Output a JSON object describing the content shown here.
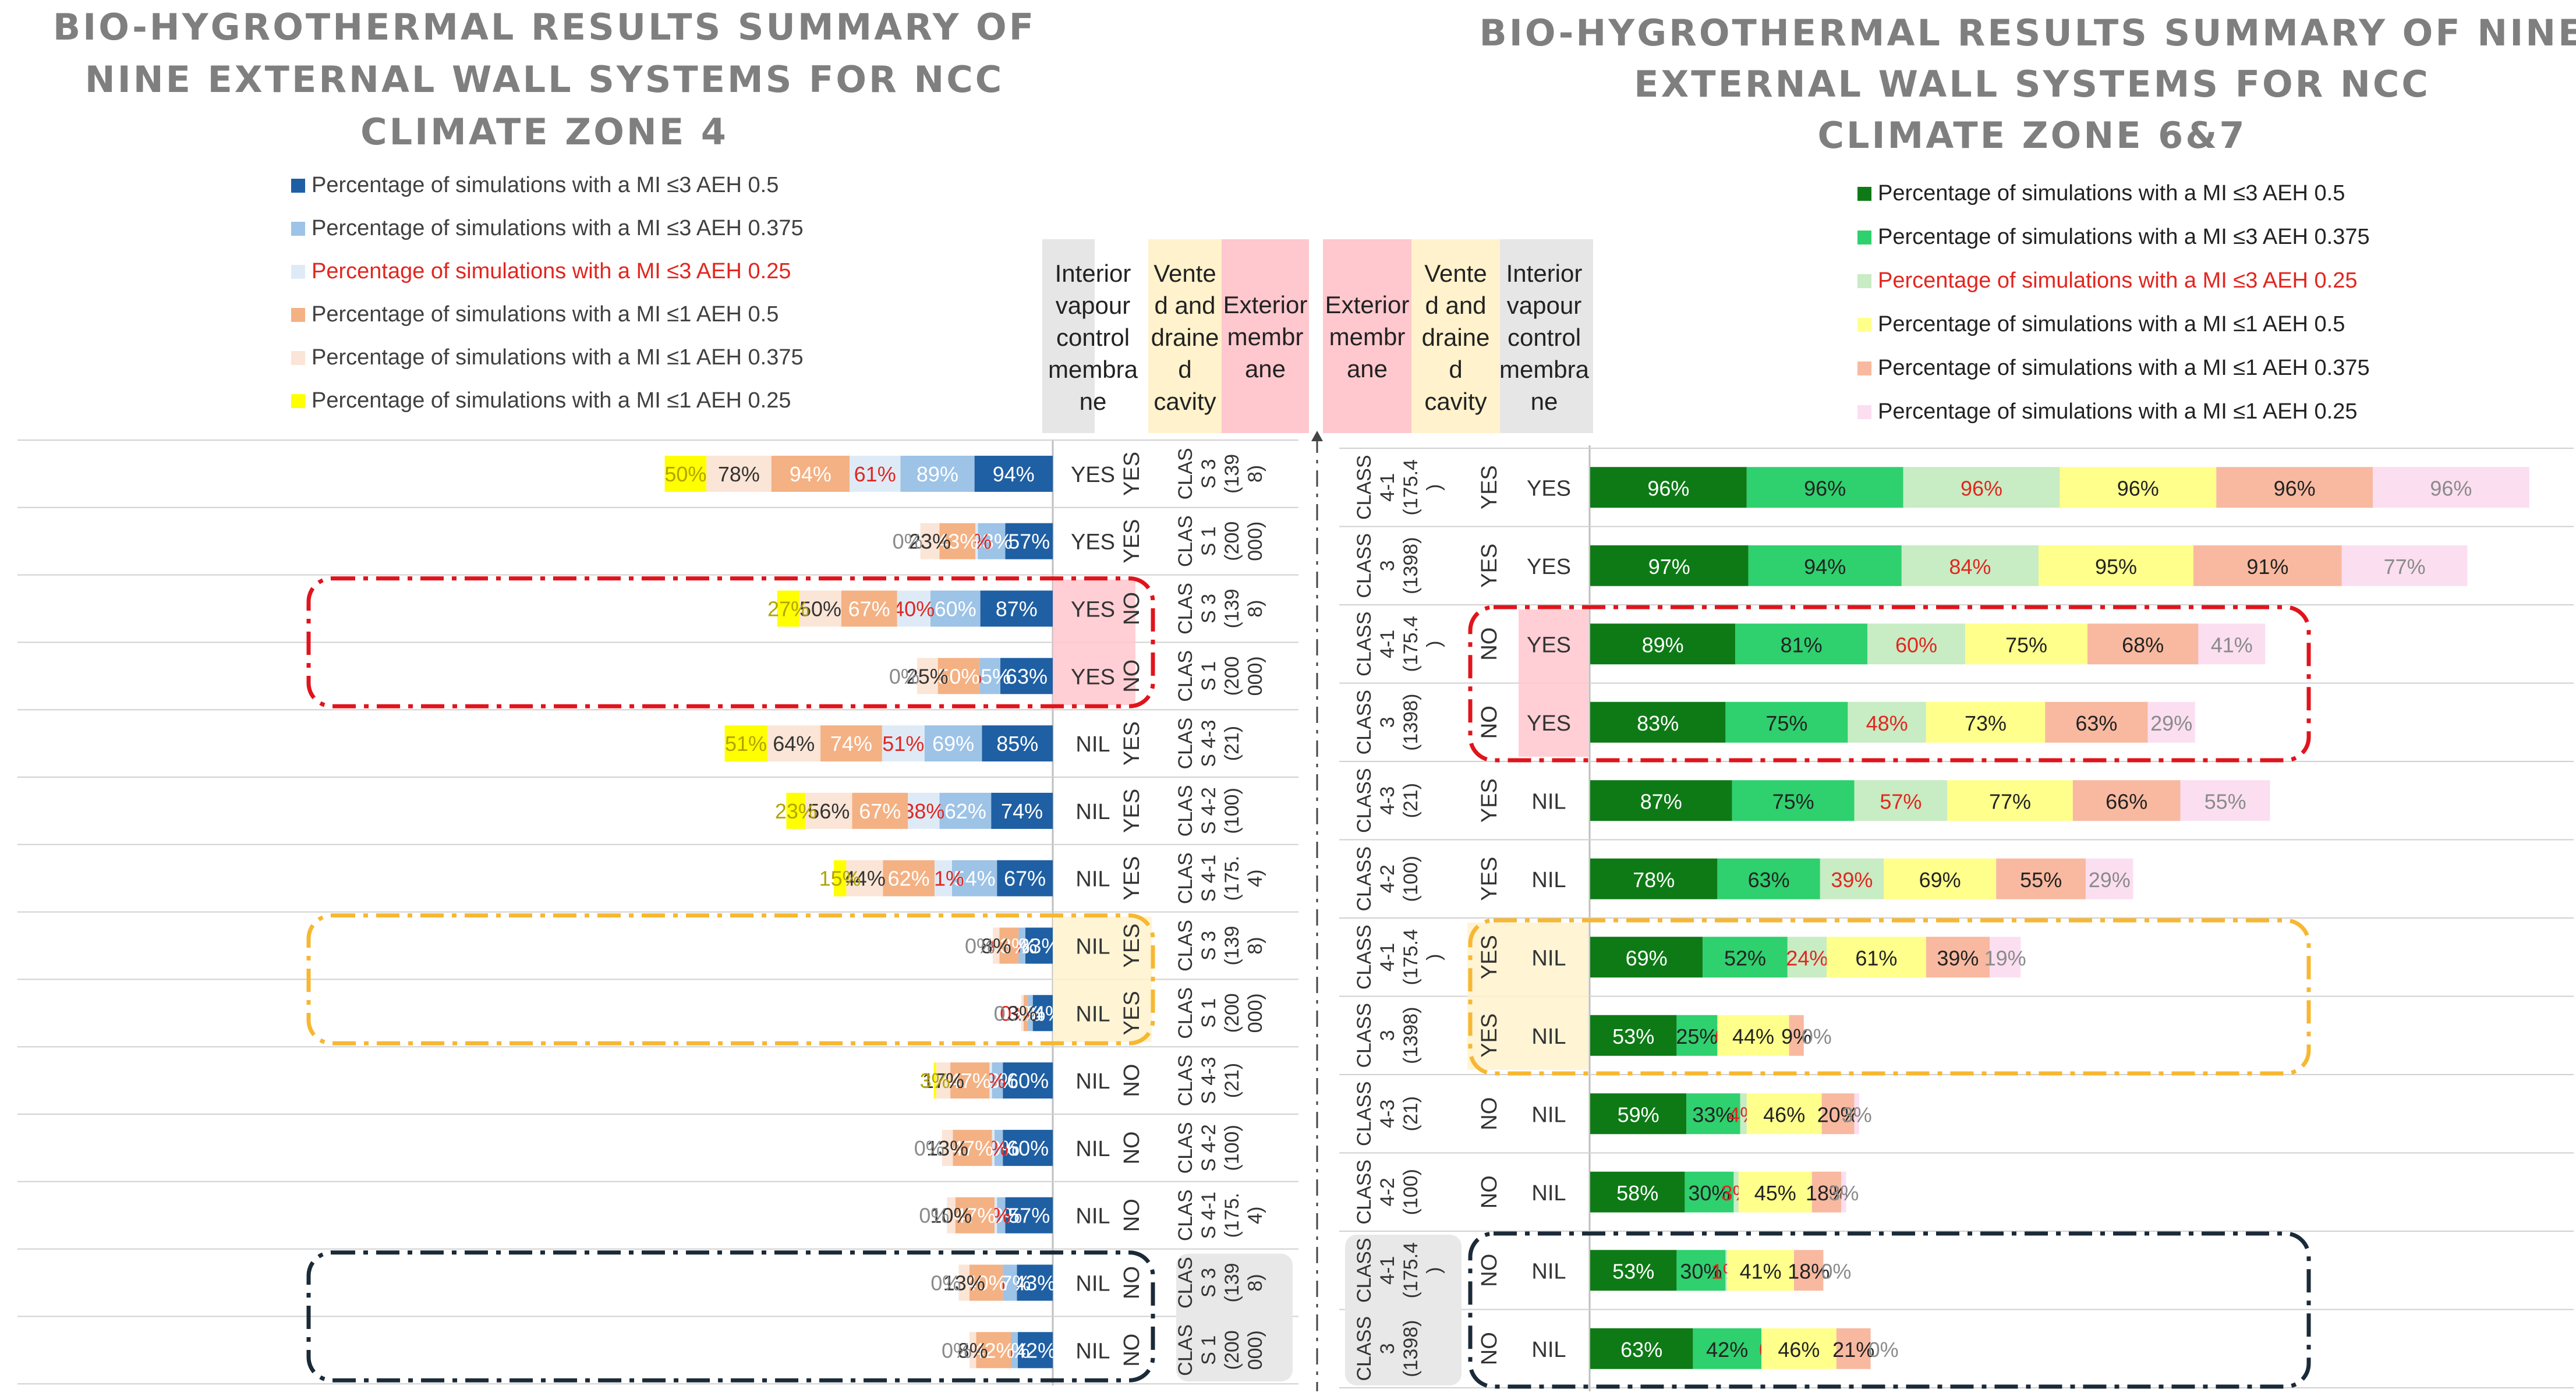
{
  "chart_data": [
    {
      "type": "bar",
      "title": "BIO-HYGROTHERMAL RESULTS SUMMARY OF NINE EXTERNAL WALL SYSTEMS FOR NCC CLIMATE ZONE 4",
      "title_lines": [
        "BIO-HYGROTHERMAL RESULTS SUMMARY OF",
        "NINE EXTERNAL WALL SYSTEMS FOR NCC",
        "CLIMATE ZONE 4"
      ],
      "series": [
        {
          "name": "Percentage of simulations with a MI ≤3 AEH 0.5",
          "color": "#1f5fa3",
          "label_color": "#ffffff"
        },
        {
          "name": "Percentage of simulations with a MI ≤3 AEH 0.375",
          "color": "#9dc3e6",
          "label_color": "#ffffff"
        },
        {
          "name": "Percentage of simulations with a MI ≤3 AEH 0.25",
          "color": "#deebf7",
          "label_color": "#e2261f"
        },
        {
          "name": "Percentage of simulations with a MI ≤1 AEH 0.5",
          "color": "#f4b183",
          "label_color": "#ffffff"
        },
        {
          "name": "Percentage of simulations with a MI ≤1 AEH 0.375",
          "color": "#fbe5d6",
          "label_color": "#333333"
        },
        {
          "name": "Percentage of simulations with a MI ≤1 AEH 0.25",
          "color": "#ffff00",
          "label_color": "#b3a400"
        }
      ],
      "highlight_legend_index": 2,
      "columns": [
        "Interior vapour control membrane",
        "Vented and drained cavity",
        "Exterior membrane"
      ],
      "column_header_lines": [
        [
          "Interior",
          "vapour",
          "control",
          "membra",
          "ne"
        ],
        [
          "Vente",
          "d and",
          "draine",
          "d",
          "cavity"
        ],
        [
          "Exterior",
          "membr",
          "ane"
        ]
      ],
      "rows": [
        {
          "values": [
            94,
            89,
            61,
            94,
            78,
            50
          ],
          "labels": [
            "94%",
            "89%",
            "61%",
            "94%",
            "78%",
            "50%"
          ],
          "interior": "YES",
          "cavity": "YES",
          "class": [
            "CLAS",
            "S 3",
            "(139",
            "8)"
          ]
        },
        {
          "values": [
            57,
            33,
            3,
            43,
            23,
            0
          ],
          "labels": [
            "57%",
            "33%",
            "3%",
            "43%",
            "23%",
            "0%"
          ],
          "interior": "YES",
          "cavity": "YES",
          "class": [
            "CLAS",
            "S 1",
            "(200",
            "000)"
          ]
        },
        {
          "values": [
            87,
            60,
            40,
            67,
            50,
            27
          ],
          "labels": [
            "87%",
            "60%",
            "40%",
            "67%",
            "50%",
            "27%"
          ],
          "interior": "YES",
          "cavity": "NO",
          "class": [
            "CLAS",
            "S 3",
            "(139",
            "8)"
          ]
        },
        {
          "values": [
            63,
            25,
            0,
            50,
            25,
            0
          ],
          "labels": [
            "63%",
            "25%",
            "0%",
            "50%",
            "25%",
            "0%"
          ],
          "interior": "YES",
          "cavity": "NO",
          "class": [
            "CLAS",
            "S 1",
            "(200",
            "000)"
          ]
        },
        {
          "values": [
            85,
            69,
            51,
            74,
            64,
            51
          ],
          "labels": [
            "85%",
            "69%",
            "51%",
            "74%",
            "64%",
            "51%"
          ],
          "interior": "NIL",
          "cavity": "YES",
          "class": [
            "CLAS",
            "S 4-3",
            "(21)"
          ]
        },
        {
          "values": [
            74,
            62,
            38,
            67,
            56,
            23
          ],
          "labels": [
            "74%",
            "62%",
            "38%",
            "67%",
            "56%",
            "23%"
          ],
          "interior": "NIL",
          "cavity": "YES",
          "class": [
            "CLAS",
            "S 4-2",
            "(100)"
          ]
        },
        {
          "values": [
            67,
            54,
            21,
            62,
            44,
            15
          ],
          "labels": [
            "67%",
            "54%",
            "21%",
            "62%",
            "44%",
            "15%"
          ],
          "interior": "NIL",
          "cavity": "YES",
          "class": [
            "CLAS",
            "S 4-1",
            "(175.",
            "4)"
          ]
        },
        {
          "values": [
            33,
            8,
            0,
            23,
            8,
            0
          ],
          "labels": [
            "33%",
            "8%",
            "0%",
            "23%",
            "8%",
            "0%"
          ],
          "interior": "NIL",
          "cavity": "YES",
          "class": [
            "CLAS",
            "S 3",
            "(139",
            "8)"
          ]
        },
        {
          "values": [
            24,
            6,
            0,
            5,
            3,
            0
          ],
          "labels": [
            "24%",
            "6%",
            "0%",
            "5%",
            "3%",
            "0..."
          ],
          "interior": "NIL",
          "cavity": "YES",
          "class": [
            "CLAS",
            "S 1",
            "(200",
            "000)"
          ]
        },
        {
          "values": [
            60,
            13,
            3,
            47,
            17,
            3
          ],
          "labels": [
            "60%",
            "13%",
            "3%",
            "47%",
            "17%",
            "3%"
          ],
          "interior": "NIL",
          "cavity": "NO",
          "class": [
            "CLAS",
            "S 4-3",
            "(21)"
          ]
        },
        {
          "values": [
            60,
            10,
            3,
            47,
            13,
            0
          ],
          "labels": [
            "60%",
            "10%",
            "3%",
            "47%",
            "13%",
            "0%"
          ],
          "interior": "NIL",
          "cavity": "NO",
          "class": [
            "CLAS",
            "S 4-2",
            "(100)"
          ]
        },
        {
          "values": [
            57,
            10,
            3,
            47,
            10,
            0
          ],
          "labels": [
            "57%",
            "10%",
            "3%",
            "47%",
            "10%",
            "0%"
          ],
          "interior": "NIL",
          "cavity": "NO",
          "class": [
            "CLAS",
            "S 4-1",
            "(175.",
            "4)"
          ]
        },
        {
          "values": [
            43,
            17,
            0,
            40,
            13,
            0
          ],
          "labels": [
            "43%",
            "17%",
            "0%",
            "40%",
            "13%",
            "0%"
          ],
          "interior": "NIL",
          "cavity": "NO",
          "class": [
            "CLAS",
            "S 3",
            "(139",
            "8)"
          ]
        },
        {
          "values": [
            42,
            8,
            0,
            42,
            8,
            0
          ],
          "labels": [
            "42%",
            "8%",
            "0%",
            "42%",
            "8%",
            "0%"
          ],
          "interior": "NIL",
          "cavity": "NO",
          "class": [
            "CLAS",
            "S 1",
            "(200",
            "000)"
          ]
        }
      ],
      "groups": [
        {
          "rows": [
            2,
            3
          ],
          "color": "#e0141c"
        },
        {
          "rows": [
            7,
            8
          ],
          "color": "#f7b731"
        },
        {
          "rows": [
            12,
            13
          ],
          "color": "#1b2a38"
        }
      ]
    },
    {
      "type": "bar",
      "title": "BIO-HYGROTHERMAL RESULTS SUMMARY OF NINE EXTERNAL WALL SYSTEMS FOR NCC CLIMATE ZONE 6&7",
      "title_lines": [
        "BIO-HYGROTHERMAL RESULTS SUMMARY OF NINE",
        "EXTERNAL WALL SYSTEMS FOR NCC",
        "CLIMATE ZONE 6&7"
      ],
      "series": [
        {
          "name": "Percentage of simulations with a MI ≤3 AEH 0.5",
          "color": "#0e7a16",
          "label_color": "#ffffff"
        },
        {
          "name": "Percentage of simulations with a MI ≤3 AEH 0.375",
          "color": "#2fd06e",
          "label_color": "#222222"
        },
        {
          "name": "Percentage of simulations with a MI ≤3 AEH 0.25",
          "color": "#c8ecc3",
          "label_color": "#e2261f"
        },
        {
          "name": "Percentage of simulations with a MI ≤1 AEH 0.5",
          "color": "#ffff8c",
          "label_color": "#222222"
        },
        {
          "name": "Percentage of simulations with a MI ≤1 AEH 0.375",
          "color": "#f8b9a0",
          "label_color": "#222222"
        },
        {
          "name": "Percentage of simulations with a MI ≤1 AEH 0.25",
          "color": "#fbdff0",
          "label_color": "#8a8a8a"
        }
      ],
      "highlight_legend_index": 2,
      "columns": [
        "Exterior membrane",
        "Vented and drained cavity",
        "Interior vapour control membrane"
      ],
      "column_header_lines": [
        [
          "Exterior",
          "membr",
          "ane"
        ],
        [
          "Vente",
          "d and",
          "draine",
          "d",
          "cavity"
        ],
        [
          "Interior",
          "vapour",
          "control",
          "membra",
          "ne"
        ]
      ],
      "rows": [
        {
          "values": [
            96,
            96,
            96,
            96,
            96,
            96
          ],
          "labels": [
            "96%",
            "96%",
            "96%",
            "96%",
            "96%",
            "96%"
          ],
          "interior": "YES",
          "cavity": "YES",
          "class": [
            "CLASS",
            "4-1",
            "(175.4",
            ")"
          ]
        },
        {
          "values": [
            97,
            94,
            84,
            95,
            91,
            77
          ],
          "labels": [
            "97%",
            "94%",
            "84%",
            "95%",
            "91%",
            "77%"
          ],
          "interior": "YES",
          "cavity": "YES",
          "class": [
            "CLASS",
            "3",
            "(1398)"
          ]
        },
        {
          "values": [
            89,
            81,
            60,
            75,
            68,
            41
          ],
          "labels": [
            "89%",
            "81%",
            "60%",
            "75%",
            "68%",
            "41%"
          ],
          "interior": "YES",
          "cavity": "NO",
          "class": [
            "CLASS",
            "4-1",
            "(175.4",
            ")"
          ]
        },
        {
          "values": [
            83,
            75,
            48,
            73,
            63,
            29
          ],
          "labels": [
            "83%",
            "75%",
            "48%",
            "73%",
            "63%",
            "29%"
          ],
          "interior": "YES",
          "cavity": "NO",
          "class": [
            "CLASS",
            "3",
            "(1398)"
          ]
        },
        {
          "values": [
            87,
            75,
            57,
            77,
            66,
            55
          ],
          "labels": [
            "87%",
            "75%",
            "57%",
            "77%",
            "66%",
            "55%"
          ],
          "interior": "NIL",
          "cavity": "YES",
          "class": [
            "CLASS",
            "4-3",
            "(21)"
          ]
        },
        {
          "values": [
            78,
            63,
            39,
            69,
            55,
            29
          ],
          "labels": [
            "78%",
            "63%",
            "39%",
            "69%",
            "55%",
            "29%"
          ],
          "interior": "NIL",
          "cavity": "YES",
          "class": [
            "CLASS",
            "4-2",
            "(100)"
          ]
        },
        {
          "values": [
            69,
            52,
            24,
            61,
            39,
            19
          ],
          "labels": [
            "69%",
            "52%",
            "24%",
            "61%",
            "39%",
            "19%"
          ],
          "interior": "NIL",
          "cavity": "YES",
          "class": [
            "CLASS",
            "4-1",
            "(175.4",
            ")"
          ]
        },
        {
          "values": [
            53,
            25,
            0,
            44,
            9,
            0
          ],
          "labels": [
            "53%",
            "25%",
            "0%",
            "44%",
            "9%",
            "0%"
          ],
          "interior": "NIL",
          "cavity": "YES",
          "class": [
            "CLASS",
            "3",
            "(1398)"
          ]
        },
        {
          "values": [
            59,
            33,
            4,
            46,
            20,
            3
          ],
          "labels": [
            "59%",
            "33%",
            "4%",
            "46%",
            "20%",
            "3%"
          ],
          "interior": "NIL",
          "cavity": "NO",
          "class": [
            "CLASS",
            "4-3",
            "(21)"
          ]
        },
        {
          "values": [
            58,
            30,
            3,
            45,
            18,
            3
          ],
          "labels": [
            "58%",
            "30%",
            "3%",
            "45%",
            "18%",
            "3%"
          ],
          "interior": "NIL",
          "cavity": "NO",
          "class": [
            "CLASS",
            "4-2",
            "(100)"
          ]
        },
        {
          "values": [
            53,
            30,
            1,
            41,
            18,
            0
          ],
          "labels": [
            "53%",
            "30%",
            "1%",
            "41%",
            "18%",
            "0%"
          ],
          "interior": "NIL",
          "cavity": "NO",
          "class": [
            "CLASS",
            "4-1",
            "(175.4",
            ")"
          ]
        },
        {
          "values": [
            63,
            42,
            0,
            46,
            21,
            0
          ],
          "labels": [
            "63%",
            "42%",
            "0%",
            "46%",
            "21%",
            "0%"
          ],
          "interior": "NIL",
          "cavity": "NO",
          "class": [
            "CLASS",
            "3",
            "(1398)"
          ]
        }
      ],
      "groups": [
        {
          "rows": [
            2,
            3
          ],
          "color": "#e0141c"
        },
        {
          "rows": [
            6,
            7
          ],
          "color": "#f7b731"
        },
        {
          "rows": [
            10,
            11
          ],
          "color": "#1b2a38"
        }
      ]
    }
  ]
}
